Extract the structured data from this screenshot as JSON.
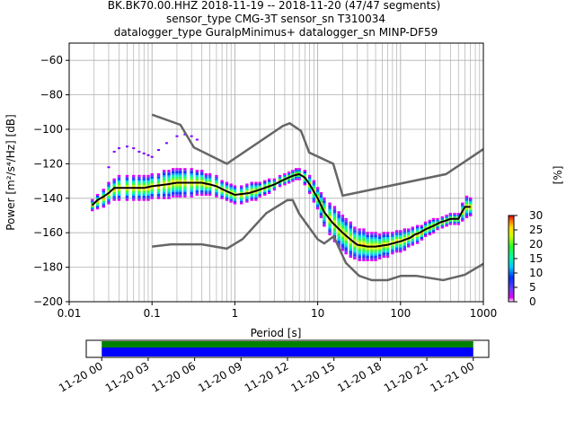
{
  "title": {
    "line1": "BK.BK70.00.HHZ   2018-11-19 -- 2018-11-20  (47/47 segments)",
    "line2": "sensor_type CMG-3T sensor_sn T310034",
    "line3": "datalogger_type GuralpMinimus+ datalogger_sn MINP-DF59"
  },
  "chart_data": [
    {
      "type": "heatmap",
      "name": "ppsd",
      "xlabel": "Period [s]",
      "ylabel": "Power [m²/s⁴/Hz] [dB]",
      "xscale": "log",
      "xlim": [
        0.01,
        1000
      ],
      "ylim": [
        -200,
        -50
      ],
      "xticks": [
        0.01,
        0.1,
        1,
        10,
        100,
        1000
      ],
      "xtick_labels": [
        "0.01",
        "0.1",
        "1",
        "10",
        "100",
        "1000"
      ],
      "yticks": [
        -200,
        -180,
        -160,
        -140,
        -120,
        -100,
        -80,
        -60
      ],
      "ytick_labels": [
        "−200",
        "−180",
        "−160",
        "−140",
        "−120",
        "−100",
        "−80",
        "−60"
      ],
      "grid": true,
      "colorbar": {
        "label": "[%]",
        "min": 0,
        "max": 30,
        "ticks": [
          0,
          5,
          10,
          15,
          20,
          25,
          30
        ],
        "colors": [
          "#ffffff",
          "#e000ff",
          "#6a3cff",
          "#0030ff",
          "#00c8ff",
          "#00ffa0",
          "#28ff28",
          "#d0ff00",
          "#ffe000",
          "#ff8000",
          "#e00000"
        ]
      },
      "mean_curve": {
        "color": "#000000",
        "x": [
          0.019,
          0.022,
          0.026,
          0.03,
          0.035,
          0.05,
          0.08,
          0.1,
          0.15,
          0.2,
          0.3,
          0.4,
          0.5,
          0.6,
          0.8,
          1.0,
          1.5,
          2.0,
          3.0,
          4.0,
          5.0,
          6.0,
          7.0,
          8.0,
          10,
          12,
          15,
          20,
          25,
          30,
          40,
          50,
          70,
          100,
          130,
          150,
          170,
          200,
          250,
          300,
          350,
          400,
          450,
          500,
          550,
          600,
          700
        ],
        "y": [
          -144,
          -141,
          -139,
          -137,
          -134,
          -134,
          -134,
          -133,
          -132,
          -131,
          -131,
          -131,
          -132,
          -133,
          -136,
          -138,
          -137,
          -135,
          -132,
          -129,
          -127,
          -126,
          -128,
          -132,
          -140,
          -148,
          -154,
          -160,
          -164,
          -167,
          -168,
          -168,
          -167,
          -165,
          -163,
          -161,
          -160,
          -158,
          -156,
          -154,
          -153,
          -152,
          -152,
          -152,
          -148,
          -145,
          -145
        ]
      },
      "density_cells": {
        "periods": [
          0.019,
          0.022,
          0.026,
          0.03,
          0.035,
          0.04,
          0.05,
          0.06,
          0.07,
          0.08,
          0.09,
          0.1,
          0.12,
          0.14,
          0.16,
          0.18,
          0.2,
          0.22,
          0.25,
          0.3,
          0.35,
          0.4,
          0.45,
          0.5,
          0.6,
          0.7,
          0.8,
          0.9,
          1.0,
          1.2,
          1.4,
          1.6,
          1.8,
          2.0,
          2.3,
          2.6,
          3.0,
          3.5,
          4.0,
          4.5,
          5.0,
          5.5,
          6.0,
          7.0,
          8.0,
          9.0,
          10,
          11,
          12,
          14,
          16,
          18,
          20,
          22,
          25,
          28,
          32,
          36,
          40,
          45,
          50,
          56,
          63,
          70,
          80,
          90,
          100,
          112,
          125,
          140,
          160,
          180,
          200,
          225,
          250,
          280,
          320,
          360,
          400,
          450,
          500,
          560,
          630,
          700
        ],
        "mean": [
          -144,
          -142,
          -140,
          -137,
          -135,
          -134,
          -134,
          -134,
          -134,
          -134,
          -134,
          -133,
          -133,
          -132,
          -132,
          -131,
          -131,
          -131,
          -131,
          -131,
          -131,
          -131,
          -132,
          -132,
          -133,
          -135,
          -136,
          -137,
          -138,
          -138,
          -137,
          -136,
          -136,
          -135,
          -134,
          -133,
          -132,
          -130,
          -129,
          -128,
          -127,
          -126,
          -126,
          -128,
          -132,
          -136,
          -140,
          -144,
          -148,
          -152,
          -155,
          -158,
          -160,
          -162,
          -164,
          -166,
          -167,
          -167,
          -168,
          -168,
          -168,
          -168,
          -167,
          -167,
          -166,
          -165,
          -165,
          -164,
          -163,
          -162,
          -161,
          -160,
          -158,
          -157,
          -156,
          -155,
          -154,
          -153,
          -152,
          -152,
          -152,
          -148,
          -145,
          -145
        ],
        "spread": [
          3,
          4,
          5,
          6,
          6,
          7,
          7,
          7,
          7,
          7,
          7,
          7,
          7,
          8,
          8,
          8,
          8,
          8,
          8,
          8,
          7,
          7,
          6,
          6,
          6,
          5,
          5,
          5,
          5,
          5,
          5,
          5,
          5,
          4,
          4,
          4,
          3,
          3,
          3,
          3,
          3,
          3,
          3,
          4,
          5,
          6,
          6,
          7,
          8,
          9,
          10,
          10,
          10,
          10,
          10,
          9,
          9,
          9,
          8,
          8,
          8,
          7,
          7,
          7,
          6,
          6,
          6,
          6,
          5,
          5,
          5,
          4,
          4,
          4,
          4,
          3,
          3,
          3,
          3,
          3,
          3,
          5,
          6,
          5
        ]
      },
      "outlier_curve": {
        "color": "#8000ff",
        "x": [
          0.03,
          0.035,
          0.04,
          0.05,
          0.06,
          0.07,
          0.08,
          0.09,
          0.1,
          0.12,
          0.15,
          0.2,
          0.25,
          0.3,
          0.35
        ],
        "y": [
          -122,
          -113,
          -111,
          -110,
          -111,
          -113,
          -114,
          -115,
          -116,
          -112,
          -108,
          -104,
          -103,
          -104,
          -106
        ]
      },
      "noise_models": {
        "color": "#666666",
        "high": {
          "x": [
            0.1,
            0.22,
            0.32,
            0.8,
            3.8,
            4.6,
            6.3,
            7.9,
            15.4,
            20,
            354.8,
            1000
          ],
          "y": [
            -91.5,
            -97.4,
            -110.5,
            -120,
            -98,
            -96.5,
            -101,
            -113.5,
            -120,
            -138.5,
            -126,
            -111.5
          ]
        },
        "low": {
          "x": [
            0.1,
            0.17,
            0.4,
            0.8,
            1.24,
            2.4,
            4.3,
            5.0,
            6.0,
            10,
            12,
            15.6,
            21.9,
            31.6,
            45,
            70,
            101,
            154,
            328,
            600,
            1000
          ],
          "y": [
            -168,
            -166.7,
            -166.7,
            -169.2,
            -163.7,
            -148.6,
            -141.1,
            -141.1,
            -149.0,
            -163.8,
            -166.2,
            -162.1,
            -177.5,
            -185,
            -187.5,
            -187.5,
            -185,
            -185,
            -187.5,
            -184.4,
            -178
          ]
        }
      }
    },
    {
      "type": "bar",
      "name": "data-coverage",
      "xlim": [
        "11-19 23:00",
        "11-21 01:00"
      ],
      "xtick_labels": [
        "11-20 00",
        "11-20 03",
        "11-20 06",
        "11-20 09",
        "11-20 12",
        "11-20 15",
        "11-20 18",
        "11-20 21",
        "11-21 00"
      ],
      "xtick_hours": [
        0,
        3,
        6,
        9,
        12,
        15,
        18,
        21,
        24
      ],
      "series": [
        {
          "role": "segments-processed",
          "color": "#008000",
          "start_hour": 0,
          "end_hour": 24
        },
        {
          "role": "data-available",
          "color": "#0000ff",
          "start_hour": 0,
          "end_hour": 24
        }
      ]
    }
  ]
}
